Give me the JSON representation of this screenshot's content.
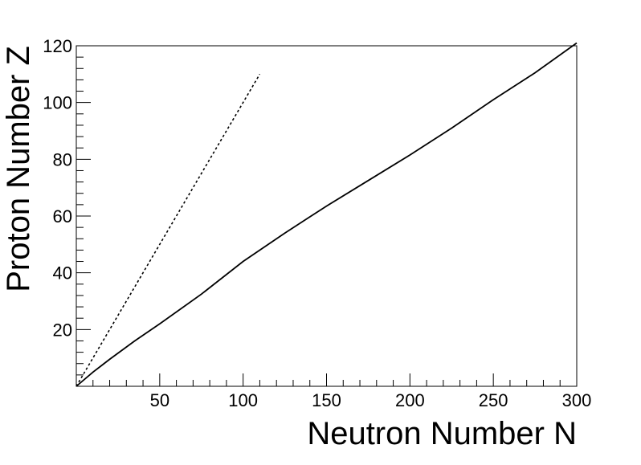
{
  "chart_data": {
    "type": "line",
    "title": "",
    "xlabel": "Neutron Number N",
    "ylabel": "Proton Number Z",
    "xlim": [
      0,
      300
    ],
    "ylim": [
      0,
      120
    ],
    "x_ticks": [
      50,
      100,
      150,
      200,
      250,
      300
    ],
    "y_ticks": [
      20,
      40,
      60,
      80,
      100,
      120
    ],
    "x_tick_labels": [
      "50",
      "100",
      "150",
      "200",
      "250",
      "300"
    ],
    "y_tick_labels": [
      "20",
      "40",
      "60",
      "80",
      "100",
      "120"
    ],
    "grid": false,
    "legend": "none",
    "series": [
      {
        "style": "solid",
        "color": "#000000",
        "x": [
          0,
          10,
          20,
          35,
          50,
          75,
          100,
          125,
          150,
          175,
          200,
          225,
          250,
          275,
          300
        ],
        "y": [
          0,
          5,
          9.5,
          16,
          22,
          32.5,
          44,
          54,
          63.5,
          72.5,
          81.5,
          91,
          101,
          110.5,
          121
        ]
      },
      {
        "style": "dotted",
        "color": "#000000",
        "x": [
          0,
          110
        ],
        "y": [
          0,
          110
        ]
      }
    ]
  }
}
